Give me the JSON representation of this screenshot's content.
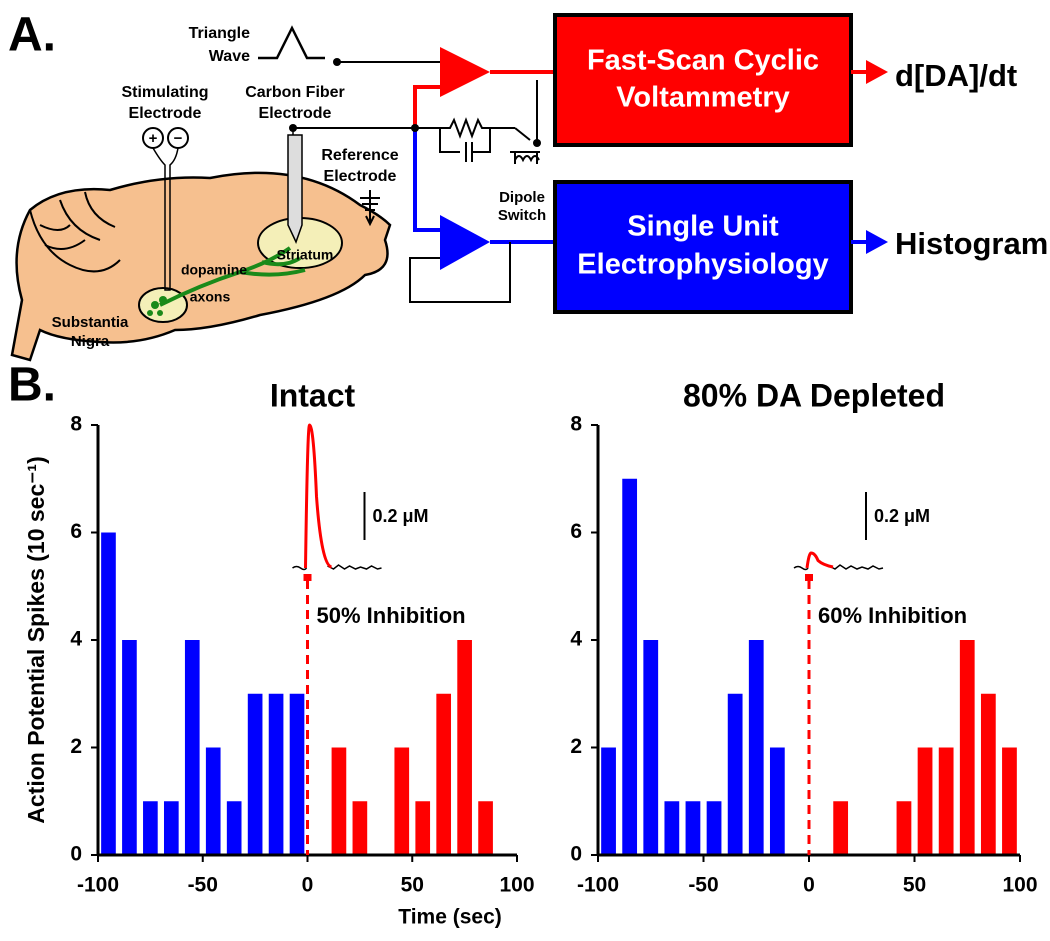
{
  "panel_a": {
    "label": "A.",
    "triangle_wave": [
      "Triangle",
      "Wave"
    ],
    "stimulating_electrode": [
      "Stimulating",
      "Electrode"
    ],
    "stim_plus": "+",
    "stim_minus": "−",
    "carbon_fiber_electrode": [
      "Carbon Fiber",
      "Electrode"
    ],
    "reference_electrode": [
      "Reference",
      "Electrode"
    ],
    "dipole_switch": [
      "Dipole",
      "Switch"
    ],
    "fscv_box": [
      "Fast-Scan Cyclic",
      "Voltammetry"
    ],
    "fscv_output": "d[DA]/dt",
    "ephys_box": [
      "Single Unit",
      "Electrophysiology"
    ],
    "ephys_output": "Histogram",
    "striatum": "Striatum",
    "dopamine_axons": [
      "dopamine",
      "axons"
    ],
    "substantia_nigra": [
      "Substantia",
      "Nigra"
    ]
  },
  "panel_b_label": "B.",
  "chart_data": [
    {
      "type": "bar",
      "title": "Intact",
      "ylabel": "Action Potential Spikes (10 sec⁻¹)",
      "xlabel": "Time (sec)",
      "annotation": "50% Inhibition",
      "scale_label": "0.2 μM",
      "x": [
        -95,
        -85,
        -75,
        -65,
        -55,
        -45,
        -35,
        -25,
        -15,
        -5,
        5,
        15,
        25,
        35,
        45,
        55,
        65,
        75,
        85,
        95
      ],
      "series": [
        {
          "color": "#0000ff",
          "values": [
            6,
            4,
            1,
            1,
            4,
            2,
            1,
            3,
            3,
            3,
            null,
            null,
            null,
            null,
            null,
            null,
            null,
            null,
            null,
            null
          ]
        },
        {
          "color": "#ff0000",
          "values": [
            null,
            null,
            null,
            null,
            null,
            null,
            null,
            null,
            null,
            null,
            null,
            2,
            1,
            null,
            2,
            1,
            3,
            4,
            1,
            null
          ]
        }
      ],
      "bar_width": 7,
      "xlim": [
        -100,
        100
      ],
      "xticks": [
        -100,
        -50,
        0,
        50,
        100
      ],
      "ylim": [
        0,
        8
      ],
      "yticks": [
        0,
        2,
        4,
        6,
        8
      ]
    },
    {
      "type": "bar",
      "title": "80% DA Depleted",
      "annotation": "60% Inhibition",
      "scale_label": "0.2 μM",
      "x": [
        -95,
        -85,
        -75,
        -65,
        -55,
        -45,
        -35,
        -25,
        -15,
        -5,
        5,
        15,
        25,
        35,
        45,
        55,
        65,
        75,
        85,
        95
      ],
      "series": [
        {
          "color": "#0000ff",
          "values": [
            2,
            7,
            4,
            1,
            1,
            1,
            3,
            4,
            2,
            null,
            null,
            null,
            null,
            null,
            null,
            null,
            null,
            null,
            null,
            null
          ]
        },
        {
          "color": "#ff0000",
          "values": [
            null,
            null,
            null,
            null,
            null,
            null,
            null,
            null,
            null,
            null,
            null,
            1,
            null,
            null,
            1,
            2,
            2,
            4,
            3,
            2
          ]
        }
      ],
      "bar_width": 7,
      "xlim": [
        -100,
        100
      ],
      "xticks": [
        -100,
        -50,
        0,
        50,
        100
      ],
      "ylim": [
        0,
        8
      ],
      "yticks": [
        0,
        2,
        4,
        6,
        8
      ]
    }
  ]
}
